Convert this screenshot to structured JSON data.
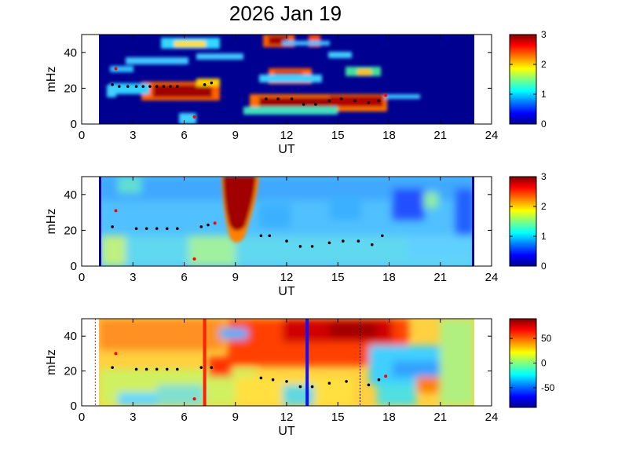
{
  "title": "2026 Jan 19",
  "colors": {
    "jet": [
      "#00008f",
      "#0000ff",
      "#0080ff",
      "#00ffff",
      "#80ff80",
      "#ffff00",
      "#ff8000",
      "#ff0000",
      "#800000"
    ],
    "background": "#000090",
    "red_line": "#ff2000",
    "blue_line": "#1010ff",
    "marker": "#000000",
    "marker_red": "#ff0000"
  },
  "chart_data": [
    {
      "type": "heatmap",
      "panel": "top",
      "xlabel": "UT",
      "ylabel": "mHz",
      "xlim": [
        0,
        24
      ],
      "ylim": [
        0,
        50
      ],
      "xticks": [
        "0",
        "3",
        "6",
        "9",
        "12",
        "15",
        "18",
        "21",
        "24"
      ],
      "yticks": [
        "0",
        "20",
        "40"
      ],
      "colorbar": {
        "range": [
          0,
          3
        ],
        "ticks": [
          "0",
          "1",
          "2",
          "3"
        ]
      },
      "data_range_ut": [
        1.0,
        23.0
      ],
      "markers": [
        [
          1.8,
          22
        ],
        [
          2.2,
          21
        ],
        [
          2.7,
          21
        ],
        [
          3.2,
          21
        ],
        [
          3.6,
          21
        ],
        [
          4.0,
          21
        ],
        [
          4.4,
          21
        ],
        [
          4.8,
          21
        ],
        [
          5.2,
          21
        ],
        [
          5.6,
          21
        ],
        [
          7.2,
          22
        ],
        [
          7.6,
          23
        ],
        [
          10.8,
          14
        ],
        [
          11.5,
          14
        ],
        [
          12.3,
          14
        ],
        [
          13.0,
          11
        ],
        [
          13.7,
          11
        ],
        [
          14.5,
          13
        ],
        [
          15.2,
          14
        ],
        [
          16.0,
          13
        ],
        [
          16.8,
          12
        ],
        [
          17.4,
          13
        ]
      ],
      "red_markers": [
        [
          2.0,
          31
        ],
        [
          6.6,
          4
        ],
        [
          17.8,
          16
        ]
      ]
    },
    {
      "type": "heatmap",
      "panel": "middle",
      "xlabel": "UT",
      "ylabel": "mHz",
      "xlim": [
        0,
        24
      ],
      "ylim": [
        0,
        50
      ],
      "xticks": [
        "0",
        "3",
        "6",
        "9",
        "12",
        "15",
        "18",
        "21",
        "24"
      ],
      "yticks": [
        "0",
        "20",
        "40"
      ],
      "colorbar": {
        "range": [
          0,
          3
        ],
        "ticks": [
          "0",
          "1",
          "2",
          "3"
        ]
      },
      "data_range_ut": [
        1.0,
        23.0
      ],
      "markers": [
        [
          1.8,
          22
        ],
        [
          3.2,
          21
        ],
        [
          3.8,
          21
        ],
        [
          4.4,
          21
        ],
        [
          5.0,
          21
        ],
        [
          5.6,
          21
        ],
        [
          7.0,
          22
        ],
        [
          7.4,
          23
        ],
        [
          10.5,
          17
        ],
        [
          11.0,
          17
        ],
        [
          12.0,
          14
        ],
        [
          12.8,
          11
        ],
        [
          13.5,
          11
        ],
        [
          14.5,
          13
        ],
        [
          15.3,
          14
        ],
        [
          16.2,
          14
        ],
        [
          17.0,
          12
        ],
        [
          17.6,
          17
        ]
      ],
      "red_markers": [
        [
          2.0,
          31
        ],
        [
          6.6,
          4
        ],
        [
          7.8,
          24
        ]
      ]
    },
    {
      "type": "heatmap",
      "panel": "bottom",
      "xlabel": "UT",
      "ylabel": "mHz",
      "xlim": [
        0,
        24
      ],
      "ylim": [
        0,
        50
      ],
      "xticks": [
        "0",
        "3",
        "6",
        "9",
        "12",
        "15",
        "18",
        "21",
        "24"
      ],
      "yticks": [
        "0",
        "20",
        "40"
      ],
      "colorbar": {
        "range": [
          -90,
          90
        ],
        "ticks": [
          "50",
          "0",
          "-50"
        ],
        "tick_values": [
          50,
          0,
          -50
        ]
      },
      "data_range_ut": [
        1.0,
        23.0
      ],
      "vertical_lines": [
        {
          "ut": 0.8,
          "style": "dotted",
          "color": "red"
        },
        {
          "ut": 7.2,
          "style": "solid",
          "color": "red"
        },
        {
          "ut": 13.2,
          "style": "solid",
          "color": "blue"
        },
        {
          "ut": 16.3,
          "style": "dotted",
          "color": "black"
        }
      ],
      "markers": [
        [
          1.8,
          22
        ],
        [
          3.2,
          21
        ],
        [
          3.8,
          21
        ],
        [
          4.4,
          21
        ],
        [
          5.0,
          21
        ],
        [
          5.6,
          21
        ],
        [
          7.0,
          22
        ],
        [
          7.6,
          22
        ],
        [
          10.5,
          16
        ],
        [
          11.2,
          15
        ],
        [
          12.0,
          14
        ],
        [
          12.8,
          11
        ],
        [
          13.5,
          11
        ],
        [
          14.5,
          13
        ],
        [
          15.5,
          14
        ],
        [
          16.8,
          12
        ],
        [
          17.4,
          15
        ]
      ],
      "red_markers": [
        [
          2.0,
          30
        ],
        [
          6.6,
          4
        ],
        [
          17.8,
          17
        ]
      ]
    }
  ]
}
